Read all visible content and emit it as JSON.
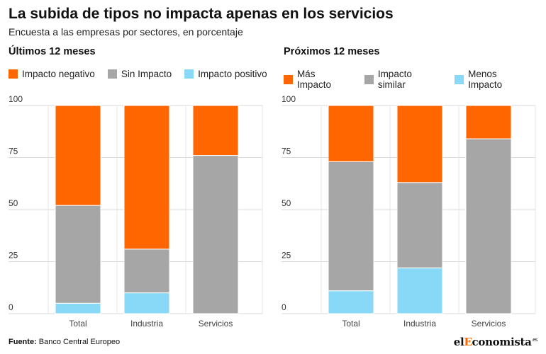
{
  "header": {
    "title": "La subida de tipos no impacta apenas en los servicios",
    "subtitle": "Encuesta a las empresas por sectores, en porcentaje"
  },
  "footer": {
    "source_label": "Fuente:",
    "source_text": "Banco Central Europeo",
    "brand_prefix": "el",
    "brand_accent": "E",
    "brand_suffix": "conomista",
    "brand_tld": ".es"
  },
  "colors": {
    "orange": "#ff6600",
    "gray": "#a6a6a6",
    "lightblue": "#87d9f7"
  },
  "chart_data": [
    {
      "type": "bar",
      "stacked": true,
      "title": "Últimos 12 meses",
      "categories": [
        "Total",
        "Industria",
        "Servicios"
      ],
      "series": [
        {
          "name": "Impacto positivo",
          "color": "#87d9f7",
          "values": [
            5,
            10,
            0
          ]
        },
        {
          "name": "Sin Impacto",
          "color": "#a6a6a6",
          "values": [
            47,
            21,
            76
          ]
        },
        {
          "name": "Impacto negativo",
          "color": "#ff6600",
          "values": [
            48,
            69,
            24
          ]
        }
      ],
      "legend_order": [
        "Impacto negativo",
        "Sin Impacto",
        "Impacto positivo"
      ],
      "yticks": [
        0,
        25,
        50,
        75,
        100
      ],
      "ylim": [
        0,
        100
      ]
    },
    {
      "type": "bar",
      "stacked": true,
      "title": "Próximos 12 meses",
      "categories": [
        "Total",
        "Industria",
        "Servicios"
      ],
      "series": [
        {
          "name": "Menos Impacto",
          "color": "#87d9f7",
          "values": [
            11,
            22,
            0
          ]
        },
        {
          "name": "Impacto similar",
          "color": "#a6a6a6",
          "values": [
            62,
            41,
            84
          ]
        },
        {
          "name": "Más Impacto",
          "color": "#ff6600",
          "values": [
            27,
            37,
            16
          ]
        }
      ],
      "legend_order": [
        "Más Impacto",
        "Impacto similar",
        "Menos Impacto"
      ],
      "yticks": [
        0,
        25,
        50,
        75,
        100
      ],
      "ylim": [
        0,
        100
      ]
    }
  ]
}
